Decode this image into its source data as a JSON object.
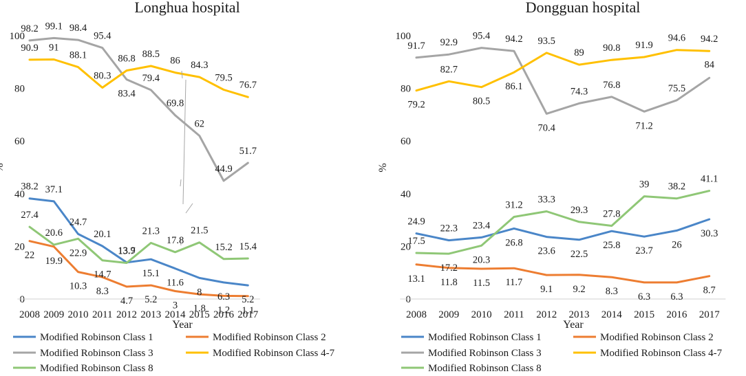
{
  "chart_data": [
    {
      "type": "line",
      "title": "Longhua hospital",
      "xlabel": "Year",
      "ylabel": "%",
      "ylim": [
        0,
        100
      ],
      "yticks": [
        0,
        20,
        40,
        60,
        80,
        100
      ],
      "categories": [
        "2008",
        "2009",
        "2010",
        "2011",
        "2012",
        "2013",
        "2014",
        "2015",
        "2016",
        "2017"
      ],
      "grid": false,
      "legend_position": "bottom",
      "series": [
        {
          "name": "Modified Robinson Class 1",
          "color": "#4a86c8",
          "values": [
            38.2,
            37.1,
            24.7,
            20.1,
            13.9,
            15.1,
            11.6,
            8,
            6.3,
            5.2
          ]
        },
        {
          "name": "Modified Robinson Class 2",
          "color": "#ed7d31",
          "values": [
            22,
            19.9,
            10.3,
            8.3,
            4.7,
            5.2,
            3,
            1.8,
            1.2,
            1.1
          ]
        },
        {
          "name": "Modified Robinson Class 3",
          "color": "#a5a5a5",
          "values": [
            98.2,
            99.1,
            98.4,
            95.4,
            83.4,
            79.4,
            69.8,
            62,
            44.9,
            51.7
          ]
        },
        {
          "name": "Modified Robinson Class 4-7",
          "color": "#ffc000",
          "values": [
            90.9,
            91,
            88.1,
            80.3,
            86.8,
            88.5,
            86,
            84.3,
            79.5,
            76.7
          ]
        },
        {
          "name": "Modified Robinson Class 8",
          "color": "#8fc776",
          "values": [
            27.4,
            20.6,
            22.9,
            14.7,
            13.7,
            21.3,
            17.8,
            21.5,
            15.2,
            15.4
          ]
        }
      ]
    },
    {
      "type": "line",
      "title": "Dongguan hospital",
      "xlabel": "Year",
      "ylabel": "%",
      "ylim": [
        0,
        100
      ],
      "yticks": [
        0,
        20,
        40,
        60,
        80,
        100
      ],
      "categories": [
        "2008",
        "2009",
        "2010",
        "2011",
        "2012",
        "2013",
        "2014",
        "2015",
        "2016",
        "2017"
      ],
      "grid": false,
      "legend_position": "bottom",
      "series": [
        {
          "name": "Modified Robinson Class 1",
          "color": "#4a86c8",
          "values": [
            24.9,
            22.3,
            23.4,
            26.8,
            23.6,
            22.5,
            25.8,
            23.7,
            26,
            30.3
          ]
        },
        {
          "name": "Modified Robinson Class 2",
          "color": "#ed7d31",
          "values": [
            13.1,
            11.8,
            11.5,
            11.7,
            9.1,
            9.2,
            8.3,
            6.3,
            6.3,
            8.7
          ]
        },
        {
          "name": "Modified Robinson Class 3",
          "color": "#a5a5a5",
          "values": [
            91.7,
            92.9,
            95.4,
            94.2,
            70.4,
            74.3,
            76.8,
            71.2,
            75.5,
            84
          ]
        },
        {
          "name": "Modified Robinson Class 4-7",
          "color": "#ffc000",
          "values": [
            79.2,
            82.7,
            80.5,
            86.1,
            93.5,
            89,
            90.8,
            91.9,
            94.6,
            94.2
          ]
        },
        {
          "name": "Modified Robinson Class 8",
          "color": "#8fc776",
          "values": [
            17.5,
            17.2,
            20.3,
            31.2,
            33.3,
            29.3,
            27.8,
            39,
            38.2,
            41.1
          ]
        }
      ]
    }
  ]
}
